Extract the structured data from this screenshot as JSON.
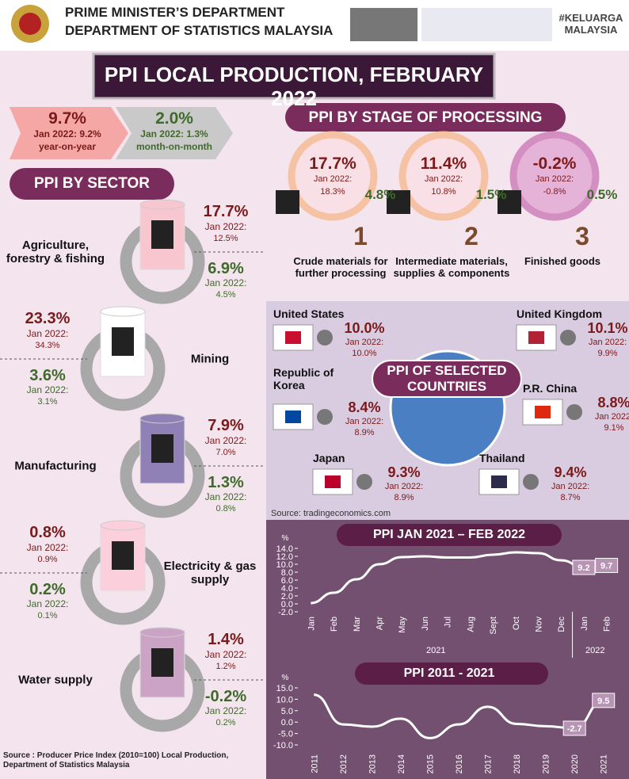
{
  "header": {
    "line1": "PRIME MINISTER’S DEPARTMENT",
    "line2": "DEPARTMENT OF STATISTICS MALAYSIA",
    "tag": "#KELUARGA MALAYSIA"
  },
  "title": "PPI LOCAL PRODUCTION, FEBRUARY 2022",
  "summary": {
    "yoy": {
      "value": "9.7%",
      "prev": "Jan 2022: 9.2%",
      "label": "year-on-year"
    },
    "mom": {
      "value": "2.0%",
      "prev": "Jan 2022: 1.3%",
      "label": "month-on-month"
    }
  },
  "sectors": {
    "title": "PPI BY SECTOR",
    "items": [
      {
        "name": "Agriculture, forestry  & fishing",
        "yoy": "17.7%",
        "yoy_jan": "Jan 2022:",
        "yoy_prev": "12.5%",
        "mom": "6.9%",
        "mom_jan": "Jan 2022:",
        "mom_prev": "4.5%"
      },
      {
        "name": "Mining",
        "yoy": "23.3%",
        "yoy_jan": "Jan 2022:",
        "yoy_prev": "34.3%",
        "mom": "3.6%",
        "mom_jan": "Jan 2022:",
        "mom_prev": "3.1%"
      },
      {
        "name": "Manufacturing",
        "yoy": "7.9%",
        "yoy_jan": "Jan 2022:",
        "yoy_prev": "7.0%",
        "mom": "1.3%",
        "mom_jan": "Jan 2022:",
        "mom_prev": "0.8%"
      },
      {
        "name": "Electricity & gas supply",
        "yoy": "0.8%",
        "yoy_jan": "Jan 2022:",
        "yoy_prev": "0.9%",
        "mom": "0.2%",
        "mom_jan": "Jan 2022:",
        "mom_prev": "0.1%"
      },
      {
        "name": "Water supply",
        "yoy": "1.4%",
        "yoy_jan": "Jan 2022:",
        "yoy_prev": "1.2%",
        "mom": "-0.2%",
        "mom_jan": "Jan 2022:",
        "mom_prev": "0.2%"
      }
    ]
  },
  "stages": {
    "title": "PPI BY STAGE OF PROCESSING",
    "items": [
      {
        "number": "1",
        "name": "Crude materials for further processing",
        "yoy": "17.7%",
        "jan": "Jan 2022:",
        "prev": "18.3%",
        "mom": "4.8%"
      },
      {
        "number": "2",
        "name": "Intermediate materials, supplies & components",
        "yoy": "11.4%",
        "jan": "Jan 2022:",
        "prev": "10.8%",
        "mom": "1.5%"
      },
      {
        "number": "3",
        "name": "Finished goods",
        "yoy": "-0.2%",
        "jan": "Jan 2022:",
        "prev": "-0.8%",
        "mom": "0.5%"
      }
    ]
  },
  "countries": {
    "title": "PPI OF SELECTED COUNTRIES",
    "source": "Source:  tradingeconomics.com",
    "items": [
      {
        "name": "United States",
        "value": "10.0%",
        "jan": "Jan 2022:",
        "prev": "10.0%"
      },
      {
        "name": "United Kingdom",
        "value": "10.1%",
        "jan": "Jan 2022:",
        "prev": "9.9%"
      },
      {
        "name": "Republic of Korea",
        "value": "8.4%",
        "jan": "Jan 2022:",
        "prev": "8.9%"
      },
      {
        "name": "P.R. China",
        "value": "8.8%",
        "jan": "Jan 2022:",
        "prev": "9.1%"
      },
      {
        "name": "Japan",
        "value": "9.3%",
        "jan": "Jan 2022:",
        "prev": "8.9%"
      },
      {
        "name": "Thailand",
        "value": "9.4%",
        "jan": "Jan 2022:",
        "prev": "8.7%"
      }
    ]
  },
  "source": "Source : Producer Price Index (2010=100) Local Production, Department of Statistics Malaysia",
  "chart_data": [
    {
      "type": "line",
      "title": "PPI JAN 2021 – FEB 2022",
      "y_label": "%",
      "color": "#ffffff",
      "categories": [
        "Jan",
        "Feb",
        "Mar",
        "Apr",
        "May",
        "Jun",
        "Jul",
        "Aug",
        "Sept",
        "Oct",
        "Nov",
        "Dec",
        "Jan",
        "Feb"
      ],
      "x_groups": [
        "2021",
        "2022"
      ],
      "values": [
        0.2,
        2.8,
        6.2,
        10.0,
        11.8,
        12.0,
        11.7,
        11.7,
        12.4,
        13.0,
        12.8,
        11.0,
        9.2,
        9.7
      ],
      "ylim": [
        -2,
        14
      ],
      "yticks": [
        {
          "value": 14,
          "label": "14.0"
        },
        {
          "value": 12,
          "label": "12.0"
        },
        {
          "value": 10,
          "label": "10.0"
        },
        {
          "value": 8,
          "label": "8.0"
        },
        {
          "value": 6,
          "label": "6.0"
        },
        {
          "value": 4,
          "label": "4.0"
        },
        {
          "value": 2,
          "label": "2.0"
        },
        {
          "value": 0,
          "label": "0.0"
        },
        {
          "value": -2,
          "label": "-2.0"
        }
      ]
    },
    {
      "type": "line",
      "title": "PPI 2011 - 2021",
      "y_label": "%",
      "color": "#ffffff",
      "categories": [
        "2011",
        "2012",
        "2013",
        "2014",
        "2015",
        "2016",
        "2017",
        "2018",
        "2019",
        "2020",
        "2021"
      ],
      "values": [
        12.0,
        -1.0,
        -2.0,
        1.5,
        -7.0,
        -1.0,
        6.7,
        -0.8,
        -1.8,
        -2.7,
        9.5
      ],
      "ylim": [
        -10,
        15
      ],
      "yticks": [
        {
          "value": 15,
          "label": "15.0"
        },
        {
          "value": 10,
          "label": "10.0"
        },
        {
          "value": 5,
          "label": "5.0"
        },
        {
          "value": 0,
          "label": "0.0"
        },
        {
          "value": -5,
          "label": "-5.0"
        },
        {
          "value": -10,
          "label": "-10.0"
        }
      ]
    }
  ]
}
